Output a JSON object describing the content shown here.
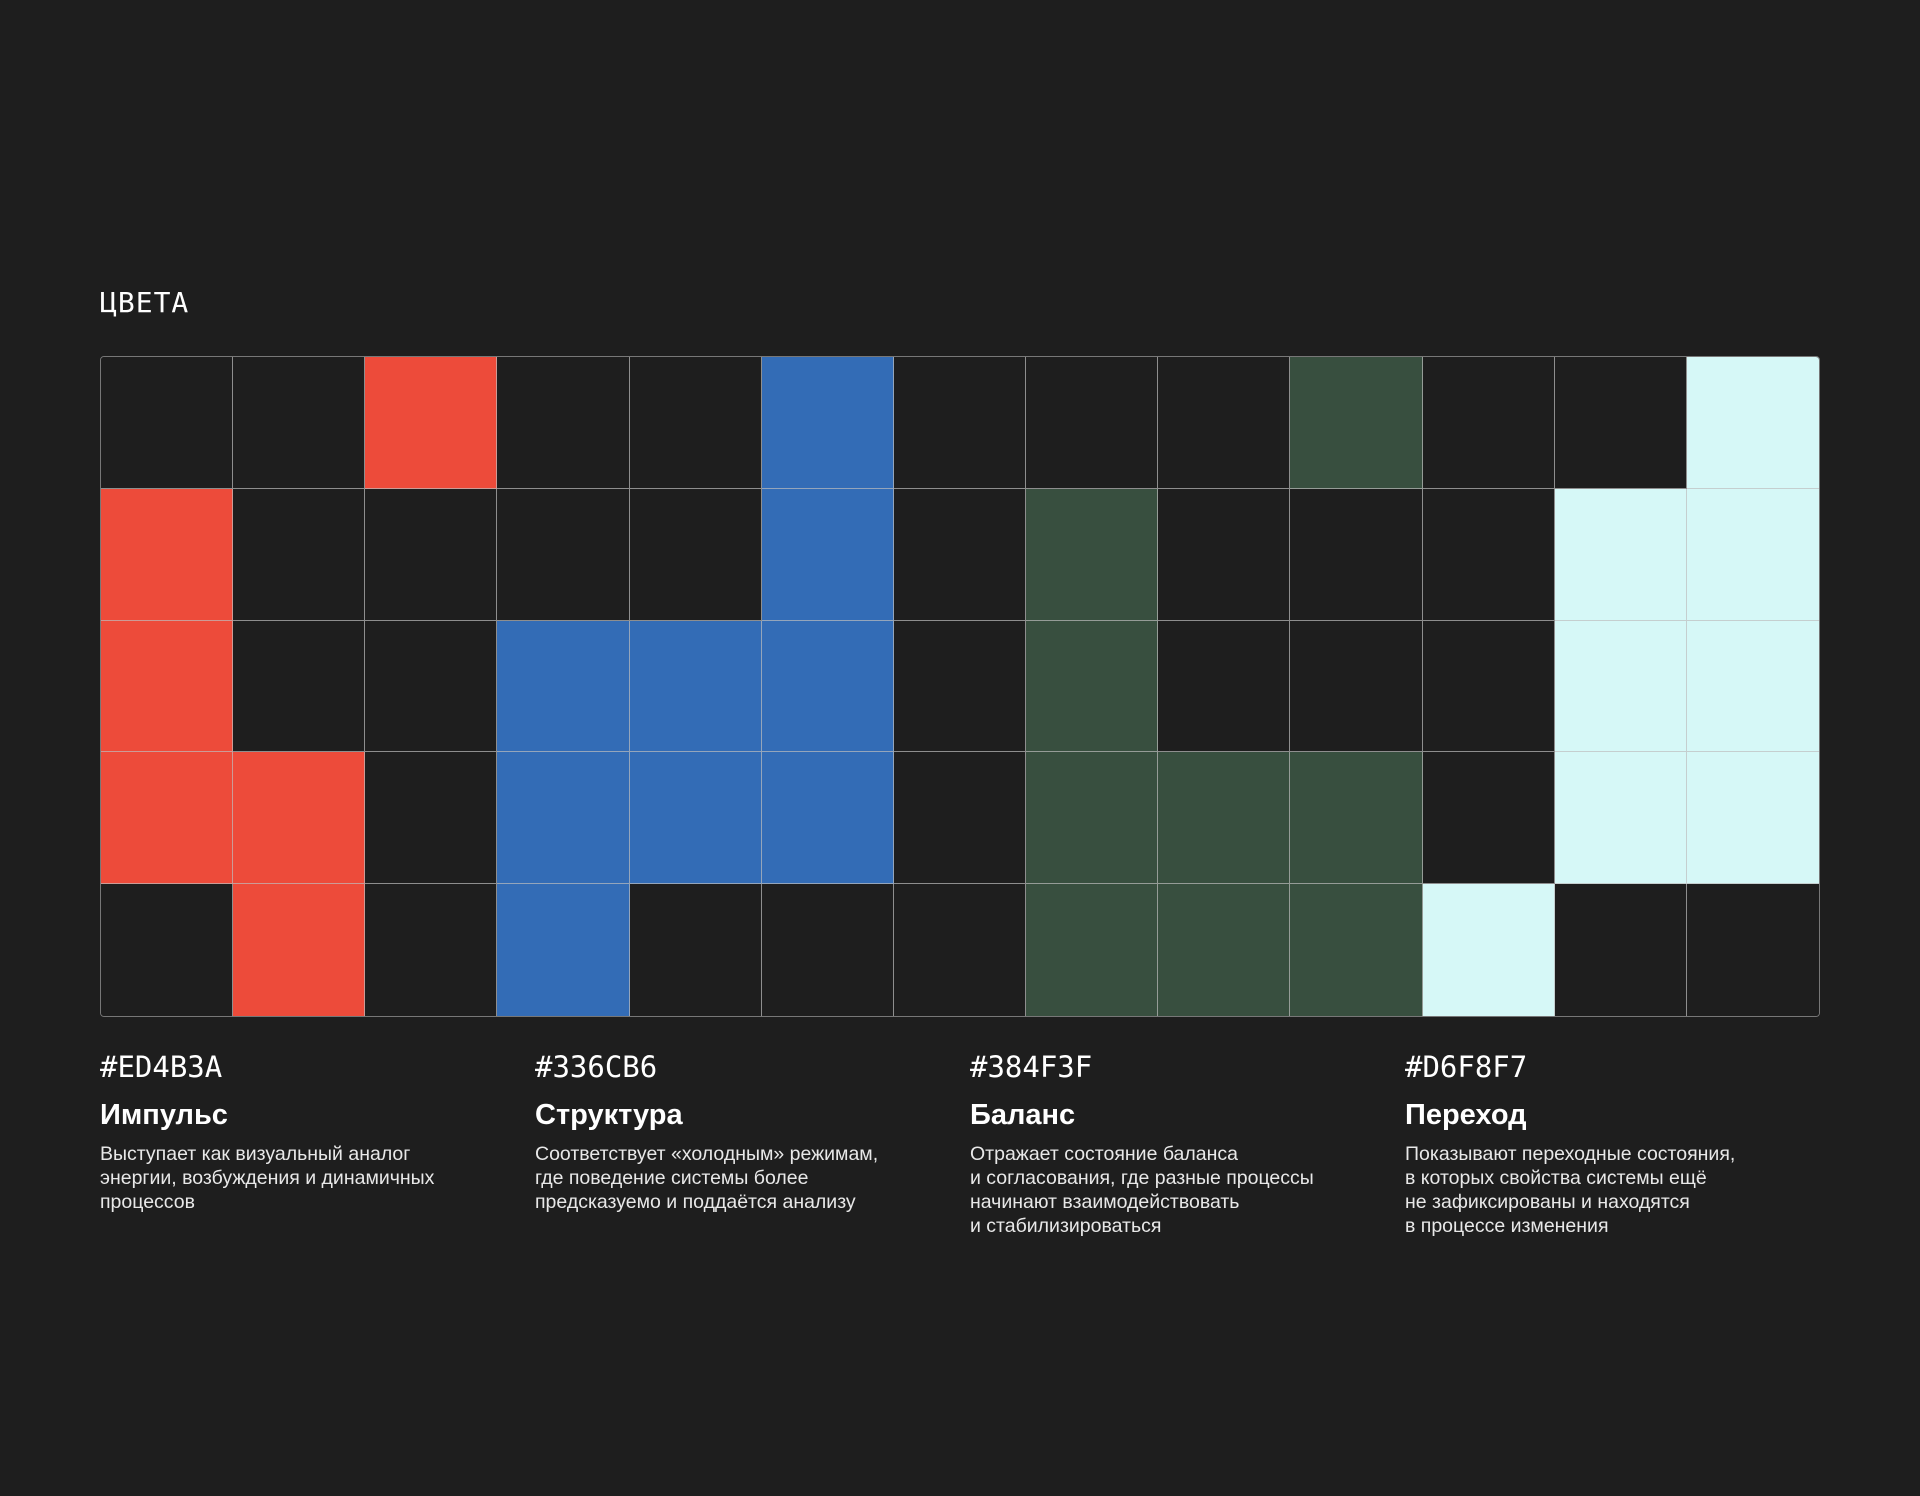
{
  "section_title": "ЦВЕТА",
  "colors": {
    "impulse": "#ED4B3A",
    "structure": "#336CB6",
    "balance": "#384F3F",
    "transition": "#D6F8F7",
    "empty": "#1e1e1e"
  },
  "grid": [
    [
      "empty",
      "empty",
      "impulse",
      "empty",
      "empty",
      "structure",
      "empty",
      "empty",
      "empty",
      "balance",
      "empty",
      "empty",
      "transition"
    ],
    [
      "impulse",
      "empty",
      "empty",
      "empty",
      "empty",
      "structure",
      "empty",
      "balance",
      "empty",
      "empty",
      "empty",
      "transition",
      "transition"
    ],
    [
      "impulse",
      "empty",
      "empty",
      "structure",
      "structure",
      "structure",
      "empty",
      "balance",
      "empty",
      "empty",
      "empty",
      "transition",
      "transition"
    ],
    [
      "impulse",
      "impulse",
      "empty",
      "structure",
      "structure",
      "structure",
      "empty",
      "balance",
      "balance",
      "balance",
      "empty",
      "transition",
      "transition"
    ],
    [
      "empty",
      "impulse",
      "empty",
      "structure",
      "empty",
      "empty",
      "empty",
      "balance",
      "balance",
      "balance",
      "transition",
      "empty",
      "empty"
    ]
  ],
  "legend": [
    {
      "hex": "#ED4B3A",
      "name": "Импульс",
      "description": "Выступает как визуальный аналог\nэнергии, возбуждения и динамичных\nпроцессов"
    },
    {
      "hex": "#336CB6",
      "name": "Структура",
      "description": "Соответствует «холодным» режимам,\nгде поведение системы более\nпредсказуемо и поддаётся анализу"
    },
    {
      "hex": "#384F3F",
      "name": "Баланс",
      "description": "Отражает состояние баланса\nи согласования, где разные процессы\nначинают взаимодействовать\nи стабилизироваться"
    },
    {
      "hex": "#D6F8F7",
      "name": "Переход",
      "description": "Показывают переходные состояния,\nв которых свойства системы ещё\nне зафиксированы и находятся\nв процессе изменения"
    }
  ]
}
